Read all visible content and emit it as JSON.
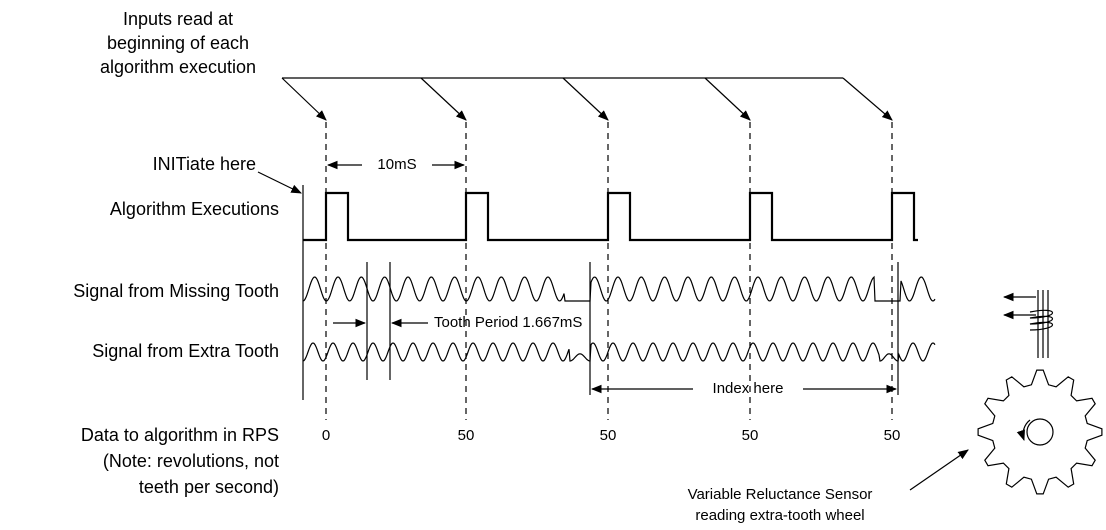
{
  "labels": {
    "inputs_read": [
      "Inputs read at",
      "beginning of each",
      "algorithm execution"
    ],
    "initiate": "INITiate here",
    "interval": "10mS",
    "algorithm_executions": "Algorithm Executions",
    "missing_tooth": "Signal from Missing Tooth",
    "tooth_period": "Tooth Period 1.667mS",
    "extra_tooth": "Signal from Extra Tooth",
    "index": "Index here",
    "data_to_algorithm": [
      "Data to algorithm in RPS",
      "(Note: revolutions, not",
      "teeth per second)"
    ],
    "sensor": [
      "Variable Reluctance Sensor",
      "reading extra-tooth wheel"
    ]
  },
  "rps_values": [
    0,
    50,
    50,
    50,
    50
  ]
}
